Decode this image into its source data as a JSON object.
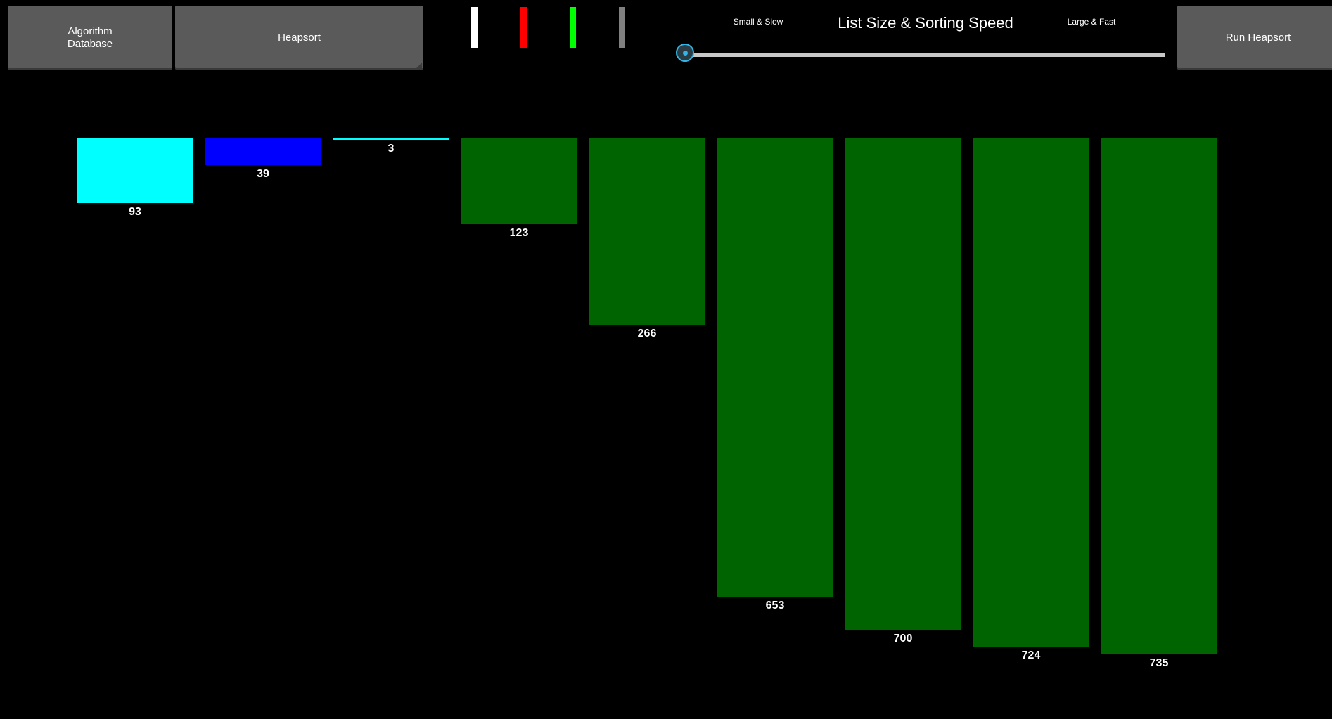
{
  "toolbar": {
    "algorithm_database_label": "Algorithm\nDatabase",
    "algorithm_select_label": "Heapsort",
    "run_label": "Run Heapsort"
  },
  "legend_colors": [
    "#ffffff",
    "#ff0000",
    "#00ff00",
    "#808080"
  ],
  "slider": {
    "title": "List Size & Sorting Speed",
    "min_label": "Small & Slow",
    "max_label": "Large & Fast",
    "value_fraction": 0.0
  },
  "chart_data": {
    "type": "bar",
    "values": [
      93,
      39,
      3,
      123,
      266,
      653,
      700,
      724,
      735
    ],
    "colors": [
      "#00ffff",
      "#0000ff",
      "#00ffff",
      "#006400",
      "#006400",
      "#006400",
      "#006400",
      "#006400",
      "#006400"
    ],
    "orientation": "downward"
  }
}
